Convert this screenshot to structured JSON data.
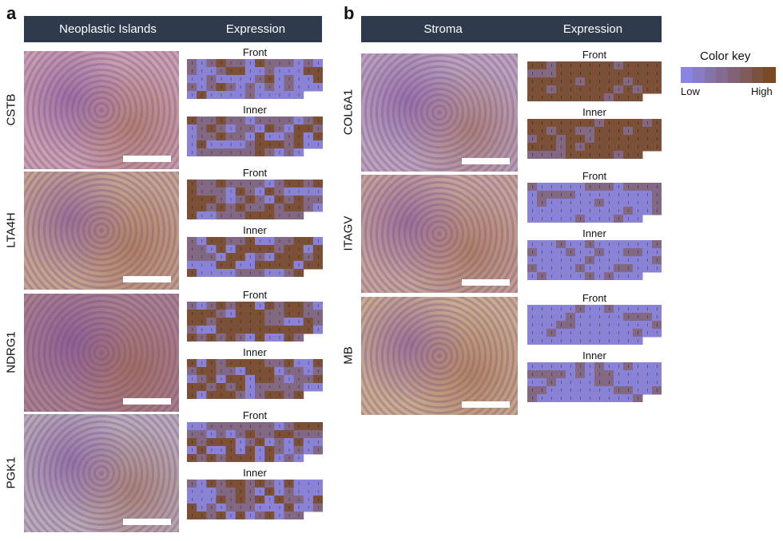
{
  "panel_a": {
    "letter": "a",
    "header": {
      "col1": "Neoplastic Islands",
      "col2": "Expression"
    },
    "rows": [
      {
        "gene": "CSTB",
        "tissue_color": "#c9a0b0",
        "front_level": 0.3,
        "inner_level": 0.35
      },
      {
        "gene": "LTA4H",
        "tissue_color": "#c4a390",
        "front_level": 0.55,
        "inner_level": 0.45
      },
      {
        "gene": "NDRG1",
        "tissue_color": "#a97f8e",
        "front_level": 0.6,
        "inner_level": 0.65
      },
      {
        "gene": "PGK1",
        "tissue_color": "#b8aab8",
        "front_level": 0.45,
        "inner_level": 0.4
      }
    ]
  },
  "panel_b": {
    "letter": "b",
    "header": {
      "col1": "Stroma",
      "col2": "Expression"
    },
    "rows": [
      {
        "gene": "COL6A1",
        "tissue_color": "#bba3bd",
        "front_level": 0.85,
        "inner_level": 0.8
      },
      {
        "gene": "ITAGV",
        "tissue_color": "#c4a39a",
        "front_level": 0.15,
        "inner_level": 0.12
      },
      {
        "gene": "MB",
        "tissue_color": "#c9ab90",
        "front_level": 0.04,
        "inner_level": 0.05
      }
    ]
  },
  "labels": {
    "front": "Front",
    "inner": "Inner"
  },
  "color_key": {
    "title": "Color key",
    "low": "Low",
    "high": "High",
    "low_color": "#8a85e0",
    "high_color": "#7a4a24"
  }
}
